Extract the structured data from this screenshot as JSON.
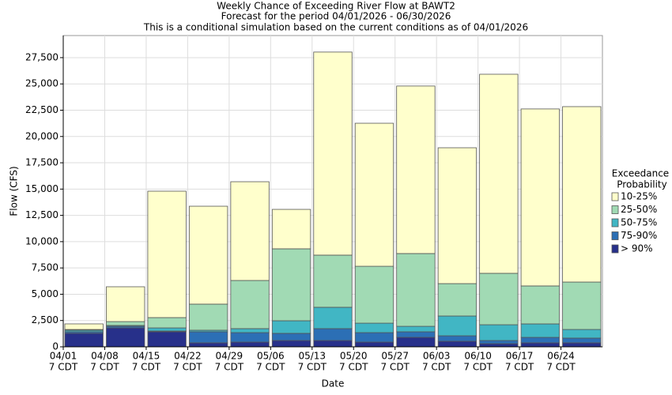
{
  "chart_data": {
    "type": "stacked-bar",
    "title": "Weekly Chance of Exceeding River Flow at BAWT2",
    "subtitle": [
      "Forecast for the period 04/01/2026 - 06/30/2026",
      "This is a conditional simulation based on the current conditions as of 04/01/2026"
    ],
    "x_label": "Date",
    "y_label": "Flow (CFS)",
    "legend_title": [
      "Exceedance",
      "Probability"
    ],
    "categories": [
      "04/01",
      "04/08",
      "04/15",
      "04/22",
      "04/29",
      "05/06",
      "05/13",
      "05/20",
      "05/27",
      "06/03",
      "06/10",
      "06/17",
      "06/24"
    ],
    "category_sublabels": [
      "7 CDT",
      "7 CDT",
      "7 CDT",
      "7 CDT",
      "7 CDT",
      "7 CDT",
      "7 CDT",
      "7 CDT",
      "7 CDT",
      "7 CDT",
      "7 CDT",
      "7 CDT",
      "7 CDT"
    ],
    "series": [
      {
        "name": "> 90%",
        "color": "#27308a",
        "values": [
          1280,
          1800,
          1430,
          380,
          450,
          600,
          600,
          450,
          900,
          530,
          300,
          380,
          380
        ]
      },
      {
        "name": "75-90%",
        "color": "#2c6fb5",
        "values": [
          150,
          150,
          70,
          1050,
          900,
          680,
          1130,
          900,
          530,
          520,
          300,
          520,
          450
        ]
      },
      {
        "name": "50-75%",
        "color": "#41b6c4",
        "values": [
          150,
          80,
          300,
          150,
          380,
          1200,
          2030,
          900,
          520,
          1880,
          1500,
          1280,
          820
        ]
      },
      {
        "name": "25-50%",
        "color": "#a1dab4",
        "values": [
          70,
          370,
          980,
          2480,
          4580,
          6840,
          4960,
          5410,
          6920,
          3080,
          4890,
          3610,
          4510
        ]
      },
      {
        "name": "10-25%",
        "color": "#ffffcc",
        "values": [
          530,
          3310,
          12020,
          9310,
          9390,
          3750,
          19310,
          13600,
          15930,
          12920,
          18930,
          16830,
          16680
        ]
      }
    ],
    "ylim": [
      0,
      29600
    ],
    "yticks": [
      0,
      {
        "value": 2500,
        "label": "2,500"
      },
      {
        "value": 5000,
        "label": "5,000"
      },
      {
        "value": 7500,
        "label": "7,500"
      },
      {
        "value": 10000,
        "label": "10,000"
      },
      {
        "value": 12500,
        "label": "12,500"
      },
      {
        "value": 15000,
        "label": "15,000"
      },
      {
        "value": 17500,
        "label": "17,500"
      },
      {
        "value": 20000,
        "label": "20,000"
      },
      {
        "value": 22500,
        "label": "22,500"
      },
      {
        "value": 25000,
        "label": "25,000"
      },
      {
        "value": 27500,
        "label": "27,500"
      }
    ],
    "grid": true,
    "legend": "right"
  }
}
